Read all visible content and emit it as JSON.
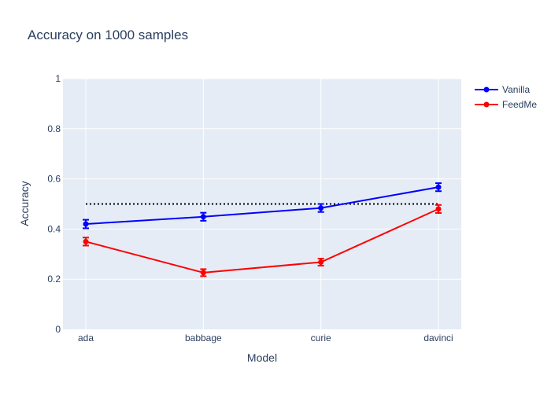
{
  "chart_data": {
    "type": "line",
    "title": "Accuracy on 1000 samples",
    "xlabel": "Model",
    "ylabel": "Accuracy",
    "categories": [
      "ada",
      "babbage",
      "curie",
      "davinci"
    ],
    "ylim": [
      0,
      1
    ],
    "yticks": [
      {
        "value": 0,
        "label": "0"
      },
      {
        "value": 0.2,
        "label": "0.2"
      },
      {
        "value": 0.4,
        "label": "0.4"
      },
      {
        "value": 0.6,
        "label": "0.6"
      },
      {
        "value": 0.8,
        "label": "0.8"
      },
      {
        "value": 1,
        "label": "1"
      }
    ],
    "grid": true,
    "legend_position": "top-right",
    "series": [
      {
        "name": "Vanilla",
        "color": "#0000ff",
        "values": [
          0.42,
          0.449,
          0.484,
          0.567
        ],
        "errors": [
          0.017,
          0.016,
          0.016,
          0.016
        ]
      },
      {
        "name": "FeedMe",
        "color": "#ff0000",
        "values": [
          0.35,
          0.226,
          0.268,
          0.48
        ],
        "errors": [
          0.016,
          0.014,
          0.014,
          0.016
        ]
      }
    ],
    "reference_line": {
      "value": 0.5,
      "color": "#000000",
      "style": "dotted"
    },
    "background_color": "#e5ecf6",
    "grid_color": "#ffffff"
  }
}
